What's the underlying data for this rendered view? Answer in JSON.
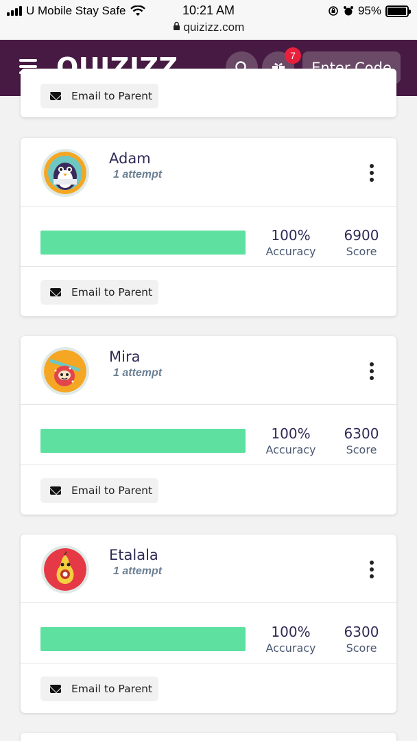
{
  "status_bar": {
    "carrier": "U Mobile Stay Safe",
    "time": "10:21 AM",
    "url": "quizizz.com",
    "battery": "95%"
  },
  "header": {
    "logo": "QUIZIZZ",
    "gift_badge": "7",
    "enter_code_label": "Enter Code"
  },
  "partial_card": {
    "email_label": "Email to Parent"
  },
  "players": [
    {
      "name": "Adam",
      "attempts": "1 attempt",
      "progress_fraction": 1.0,
      "accuracy": "100%",
      "accuracy_label": "Accuracy",
      "score": "6900",
      "score_label": "Score",
      "email_label": "Email to Parent",
      "avatar_icon": "penguin-avatar",
      "avatar_color": "#f5a623"
    },
    {
      "name": "Mira",
      "attempts": "1 attempt",
      "progress_fraction": 1.0,
      "accuracy": "100%",
      "accuracy_label": "Accuracy",
      "score": "6300",
      "score_label": "Score",
      "email_label": "Email to Parent",
      "avatar_icon": "sloth-avatar",
      "avatar_color": "#f5a623"
    },
    {
      "name": "Etalala",
      "attempts": "1 attempt",
      "progress_fraction": 1.0,
      "accuracy": "100%",
      "accuracy_label": "Accuracy",
      "score": "6300",
      "score_label": "Score",
      "email_label": "Email to Parent",
      "avatar_icon": "pear-avatar",
      "avatar_color": "#e63946"
    }
  ],
  "colors": {
    "header_bg": "#461a42",
    "progress_fill": "#5ee0a0",
    "badge": "#e8203c"
  }
}
